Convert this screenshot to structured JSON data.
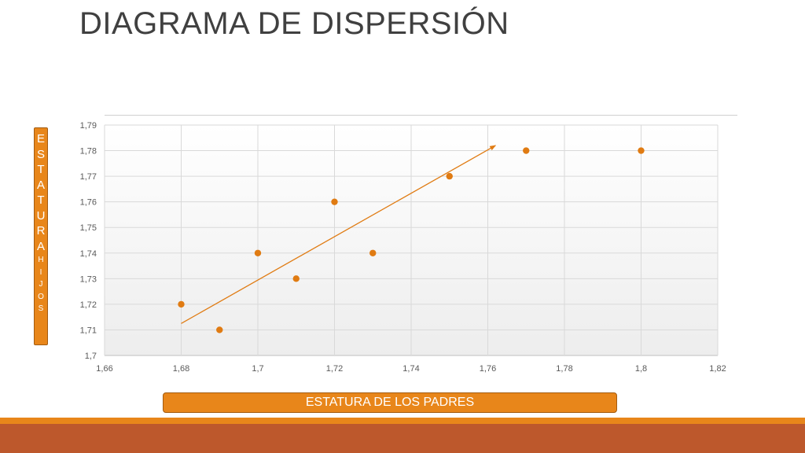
{
  "slide": {
    "title": "DIAGRAMA DE DISPERSIÓN"
  },
  "colors": {
    "accent": "#e8861a",
    "marker": "#e07b12",
    "band_dark": "#bd582c",
    "grid": "#d9d9d9"
  },
  "chart_data": {
    "type": "scatter",
    "title": "",
    "xlabel": "ESTATURA DE LOS PADRES",
    "ylabel": "ESTATURA HIJOS",
    "ylabel_letters_big": [
      "E",
      "S",
      "T",
      "A",
      "T",
      "U",
      "R",
      "A"
    ],
    "ylabel_letters_small": [
      "H",
      "I",
      "J",
      "O",
      "S"
    ],
    "xlim": [
      1.66,
      1.82
    ],
    "ylim": [
      1.7,
      1.79
    ],
    "x_ticks": [
      "1,66",
      "1,68",
      "1,7",
      "1,72",
      "1,74",
      "1,76",
      "1,78",
      "1,8",
      "1,82"
    ],
    "y_ticks": [
      "1,7",
      "1,71",
      "1,72",
      "1,73",
      "1,74",
      "1,75",
      "1,76",
      "1,77",
      "1,78",
      "1,79"
    ],
    "grid": true,
    "points": [
      {
        "x": 1.68,
        "y": 1.72
      },
      {
        "x": 1.69,
        "y": 1.71
      },
      {
        "x": 1.7,
        "y": 1.74
      },
      {
        "x": 1.71,
        "y": 1.73
      },
      {
        "x": 1.72,
        "y": 1.76
      },
      {
        "x": 1.73,
        "y": 1.74
      },
      {
        "x": 1.75,
        "y": 1.77
      },
      {
        "x": 1.77,
        "y": 1.78
      },
      {
        "x": 1.8,
        "y": 1.78
      }
    ],
    "trend_arrow": {
      "from": {
        "x": 1.68,
        "y": 1.7125
      },
      "to": {
        "x": 1.762,
        "y": 1.782
      }
    }
  }
}
